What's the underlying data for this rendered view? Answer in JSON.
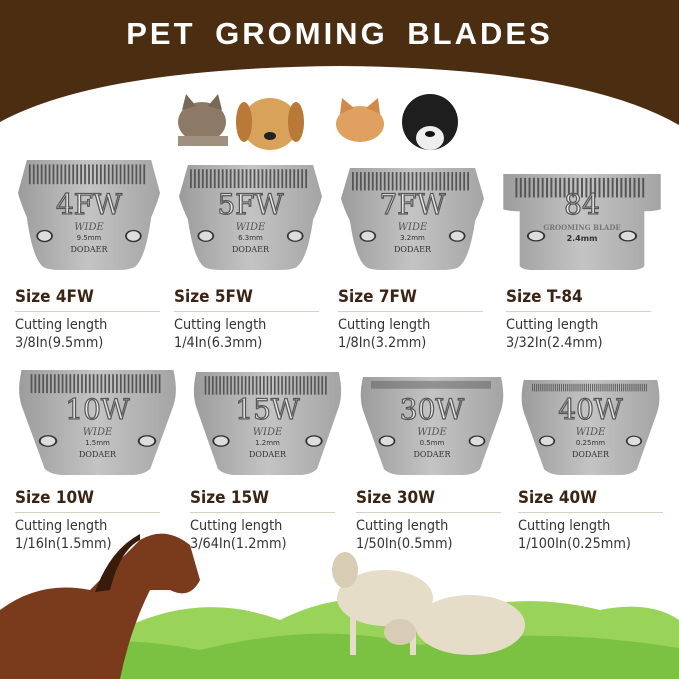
{
  "title": "PET GROMING BLADES",
  "colors": {
    "header": "#4b2d12",
    "size_text": "#3b2414",
    "blade": "#b5b5b5"
  },
  "blades": [
    {
      "code": "4FW",
      "wide": "WIDE",
      "mm": "9.5mm",
      "brand": "DODAER",
      "size": "Size 4FW",
      "cutting_label": "Cutting length",
      "cutting_value": "3/8In(9.5mm)"
    },
    {
      "code": "5FW",
      "wide": "WIDE",
      "mm": "6.3mm",
      "brand": "DODAER",
      "size": "Size 5FW",
      "cutting_label": "Cutting length",
      "cutting_value": "1/4In(6.3mm)"
    },
    {
      "code": "7FW",
      "wide": "WIDE",
      "mm": "3.2mm",
      "brand": "DODAER",
      "size": "Size 7FW",
      "cutting_label": "Cutting length",
      "cutting_value": "1/8In(3.2mm)"
    },
    {
      "code": "84",
      "wide": "GROOMING BLADE",
      "mm": "2.4mm",
      "brand": "",
      "size": "Size T-84",
      "cutting_label": "Cutting length",
      "cutting_value": "3/32In(2.4mm)"
    },
    {
      "code": "10W",
      "wide": "WIDE",
      "mm": "1.5mm",
      "brand": "DODAER",
      "size": "Size 10W",
      "cutting_label": "Cutting length",
      "cutting_value": "1/16In(1.5mm)"
    },
    {
      "code": "15W",
      "wide": "WIDE",
      "mm": "1.2mm",
      "brand": "DODAER",
      "size": "Size 15W",
      "cutting_label": "Cutting length",
      "cutting_value": "3/64In(1.2mm)"
    },
    {
      "code": "30W",
      "wide": "WIDE",
      "mm": "0.5mm",
      "brand": "DODAER",
      "size": "Size 30W",
      "cutting_label": "Cutting length",
      "cutting_value": "1/50In(0.5mm)"
    },
    {
      "code": "40W",
      "wide": "WIDE",
      "mm": "0.25mm",
      "brand": "DODAER",
      "size": "Size 40W",
      "cutting_label": "Cutting length",
      "cutting_value": "1/100In(0.25mm)"
    }
  ]
}
